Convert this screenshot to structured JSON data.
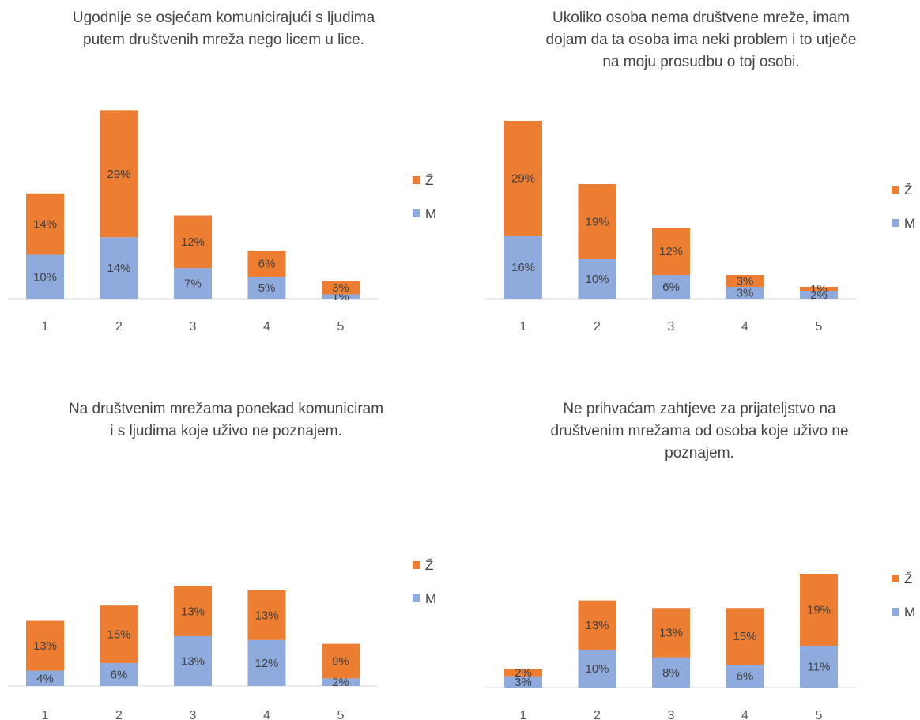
{
  "colors": {
    "Z": "#ED7D31",
    "M": "#8FAADC",
    "axis": "#D9D9D9"
  },
  "chart_data": [
    {
      "type": "bar",
      "stacked": true,
      "title_lines": [
        "Ugodnije se osjećam komunicirajući s ljudima",
        "putem društvenih mreža nego licem u lice."
      ],
      "categories": [
        "1",
        "2",
        "3",
        "4",
        "5"
      ],
      "series": [
        {
          "name": "M",
          "values": [
            10,
            14,
            7,
            5,
            1
          ],
          "labels": [
            "10%",
            "14%",
            "7%",
            "5%",
            "1%"
          ]
        },
        {
          "name": "Ž",
          "values": [
            14,
            29,
            12,
            6,
            3
          ],
          "labels": [
            "14%",
            "29%",
            "12%",
            "6%",
            "3%"
          ]
        }
      ],
      "legend": [
        "Ž",
        "M"
      ],
      "legend_position": "right",
      "grid": false
    },
    {
      "type": "bar",
      "stacked": true,
      "title_lines": [
        "Ukoliko osoba nema društvene mreže, imam",
        "dojam da ta osoba ima neki problem i to utječe",
        "na moju prosudbu o toj osobi."
      ],
      "categories": [
        "1",
        "2",
        "3",
        "4",
        "5"
      ],
      "series": [
        {
          "name": "M",
          "values": [
            16,
            10,
            6,
            3,
            2
          ],
          "labels": [
            "16%",
            "10%",
            "6%",
            "3%",
            "2%"
          ]
        },
        {
          "name": "Ž",
          "values": [
            29,
            19,
            12,
            3,
            1
          ],
          "labels": [
            "29%",
            "19%",
            "12%",
            "3%",
            "1%"
          ]
        }
      ],
      "legend": [
        "Ž",
        "M"
      ],
      "legend_position": "right",
      "grid": false
    },
    {
      "type": "bar",
      "stacked": true,
      "title_lines": [
        "Na društvenim mrežama ponekad komuniciram",
        "i s ljudima koje uživo ne poznajem."
      ],
      "categories": [
        "1",
        "2",
        "3",
        "4",
        "5"
      ],
      "series": [
        {
          "name": "M",
          "values": [
            4,
            6,
            13,
            12,
            2
          ],
          "labels": [
            "4%",
            "6%",
            "13%",
            "12%",
            "2%"
          ]
        },
        {
          "name": "Ž",
          "values": [
            13,
            15,
            13,
            13,
            9
          ],
          "labels": [
            "13%",
            "15%",
            "13%",
            "13%",
            "9%"
          ]
        }
      ],
      "legend": [
        "Ž",
        "M"
      ],
      "legend_position": "right",
      "grid": false
    },
    {
      "type": "bar",
      "stacked": true,
      "title_lines": [
        "Ne prihvaćam zahtjeve za prijateljstvo na",
        "društvenim mrežama od osoba koje uživo ne",
        "poznajem."
      ],
      "categories": [
        "1",
        "2",
        "3",
        "4",
        "5"
      ],
      "series": [
        {
          "name": "M",
          "values": [
            3,
            10,
            8,
            6,
            11
          ],
          "labels": [
            "3%",
            "10%",
            "8%",
            "6%",
            "11%"
          ]
        },
        {
          "name": "Ž",
          "values": [
            2,
            13,
            13,
            15,
            19
          ],
          "labels": [
            "2%",
            "13%",
            "13%",
            "15%",
            "19%"
          ]
        }
      ],
      "legend": [
        "Ž",
        "M"
      ],
      "legend_position": "right",
      "grid": false
    }
  ]
}
